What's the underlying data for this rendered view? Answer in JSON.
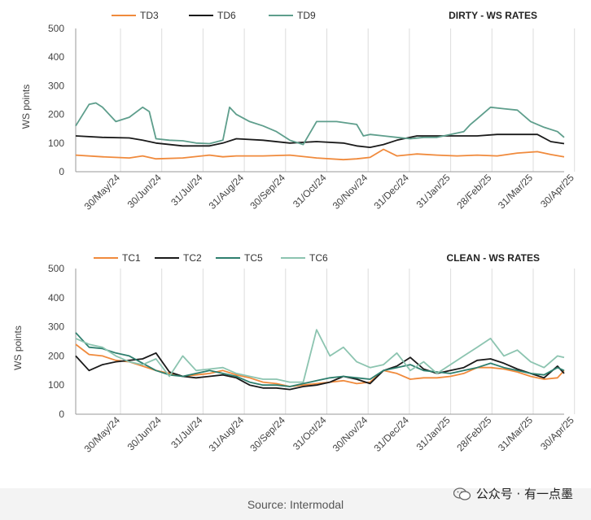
{
  "source_text": "Source: Intermodal",
  "watermark_text": "公众号 · 有一点墨",
  "x_ticks": [
    "30/May/24",
    "30/Jun/24",
    "31/Jul/24",
    "31/Aug/24",
    "30/Sep/24",
    "31/Oct/24",
    "30/Nov/24",
    "31/Dec/24",
    "31/Jan/25",
    "28/Feb/25",
    "31/Mar/25",
    "30/Apr/25"
  ],
  "chart_data": [
    {
      "type": "line",
      "title": "DIRTY - WS RATES",
      "ylabel": "WS points",
      "ylim": [
        0,
        500
      ],
      "yticks": [
        0,
        100,
        200,
        300,
        400,
        500
      ],
      "xlim": [
        0,
        365
      ],
      "grid": "vertical",
      "legend": "top-left",
      "series": [
        {
          "name": "TD3",
          "color": "#f08a3c",
          "x": [
            0,
            20,
            40,
            50,
            60,
            80,
            100,
            110,
            120,
            140,
            160,
            180,
            200,
            210,
            220,
            230,
            240,
            255,
            270,
            285,
            300,
            315,
            330,
            345,
            355,
            365
          ],
          "y": [
            58,
            52,
            48,
            55,
            45,
            48,
            58,
            52,
            55,
            55,
            58,
            48,
            42,
            45,
            50,
            78,
            55,
            62,
            58,
            55,
            58,
            55,
            65,
            70,
            60,
            52
          ]
        },
        {
          "name": "TD6",
          "color": "#1a1a1a",
          "x": [
            0,
            20,
            40,
            50,
            60,
            80,
            100,
            110,
            120,
            140,
            160,
            180,
            200,
            210,
            220,
            230,
            240,
            255,
            270,
            285,
            300,
            315,
            330,
            345,
            355,
            365
          ],
          "y": [
            125,
            120,
            118,
            110,
            100,
            90,
            90,
            100,
            115,
            110,
            100,
            105,
            100,
            90,
            85,
            95,
            110,
            125,
            125,
            125,
            125,
            130,
            130,
            130,
            105,
            98
          ]
        },
        {
          "name": "TD9",
          "color": "#5e9e8c",
          "x": [
            0,
            10,
            15,
            20,
            30,
            40,
            50,
            55,
            60,
            70,
            80,
            90,
            100,
            110,
            115,
            120,
            130,
            140,
            150,
            160,
            170,
            180,
            195,
            210,
            215,
            220,
            230,
            240,
            250,
            260,
            270,
            280,
            290,
            295,
            300,
            310,
            320,
            330,
            340,
            350,
            360,
            365
          ],
          "y": [
            160,
            235,
            240,
            225,
            175,
            190,
            225,
            210,
            115,
            110,
            108,
            100,
            98,
            110,
            225,
            200,
            175,
            160,
            140,
            110,
            95,
            175,
            175,
            165,
            125,
            130,
            125,
            120,
            115,
            120,
            120,
            130,
            140,
            165,
            185,
            225,
            220,
            215,
            175,
            155,
            140,
            120
          ]
        }
      ]
    },
    {
      "type": "line",
      "title": "CLEAN - WS RATES",
      "ylabel": "WS points",
      "ylim": [
        0,
        500
      ],
      "yticks": [
        0,
        100,
        200,
        300,
        400,
        500
      ],
      "xlim": [
        0,
        365
      ],
      "grid": "vertical",
      "legend": "top-left",
      "series": [
        {
          "name": "TC1",
          "color": "#f08a3c",
          "x": [
            0,
            10,
            20,
            30,
            40,
            50,
            60,
            70,
            80,
            90,
            100,
            110,
            120,
            130,
            140,
            150,
            160,
            170,
            180,
            190,
            200,
            210,
            220,
            230,
            240,
            250,
            260,
            270,
            280,
            290,
            300,
            310,
            320,
            330,
            340,
            350,
            360,
            365
          ],
          "y": [
            240,
            205,
            200,
            185,
            180,
            165,
            150,
            140,
            130,
            135,
            140,
            150,
            135,
            125,
            110,
            105,
            95,
            100,
            105,
            110,
            115,
            105,
            110,
            150,
            140,
            120,
            125,
            125,
            130,
            140,
            160,
            160,
            155,
            145,
            130,
            120,
            125,
            150
          ]
        },
        {
          "name": "TC2",
          "color": "#1a1a1a",
          "x": [
            0,
            10,
            20,
            30,
            40,
            50,
            60,
            70,
            80,
            90,
            100,
            110,
            120,
            130,
            140,
            150,
            160,
            170,
            180,
            190,
            200,
            210,
            220,
            230,
            240,
            250,
            260,
            270,
            280,
            290,
            300,
            310,
            320,
            330,
            340,
            350,
            360,
            365
          ],
          "y": [
            200,
            150,
            170,
            180,
            185,
            190,
            210,
            145,
            130,
            125,
            130,
            135,
            125,
            100,
            90,
            90,
            85,
            95,
            100,
            110,
            130,
            120,
            105,
            150,
            165,
            195,
            155,
            140,
            150,
            160,
            185,
            190,
            175,
            155,
            140,
            125,
            165,
            140
          ]
        },
        {
          "name": "TC5",
          "color": "#2e7f6e",
          "x": [
            0,
            10,
            20,
            30,
            40,
            50,
            60,
            70,
            80,
            90,
            100,
            110,
            120,
            130,
            140,
            150,
            160,
            170,
            180,
            190,
            200,
            210,
            220,
            230,
            240,
            250,
            260,
            270,
            280,
            290,
            300,
            310,
            320,
            330,
            340,
            350,
            360,
            365
          ],
          "y": [
            280,
            230,
            225,
            210,
            200,
            175,
            150,
            135,
            130,
            140,
            150,
            140,
            130,
            110,
            100,
            100,
            95,
            105,
            115,
            125,
            130,
            125,
            120,
            150,
            160,
            170,
            150,
            145,
            140,
            150,
            160,
            175,
            160,
            150,
            140,
            135,
            160,
            150
          ]
        },
        {
          "name": "TC6",
          "color": "#8cc4b0",
          "x": [
            0,
            10,
            20,
            30,
            40,
            50,
            60,
            70,
            80,
            90,
            100,
            110,
            120,
            130,
            140,
            150,
            160,
            170,
            180,
            190,
            200,
            210,
            220,
            230,
            240,
            250,
            260,
            270,
            280,
            290,
            300,
            310,
            320,
            330,
            340,
            350,
            360,
            365
          ],
          "y": [
            260,
            240,
            230,
            200,
            180,
            170,
            190,
            130,
            200,
            150,
            155,
            160,
            140,
            130,
            120,
            120,
            110,
            110,
            290,
            200,
            230,
            180,
            160,
            170,
            210,
            150,
            180,
            140,
            170,
            200,
            230,
            260,
            200,
            220,
            180,
            160,
            200,
            195
          ]
        }
      ]
    }
  ]
}
